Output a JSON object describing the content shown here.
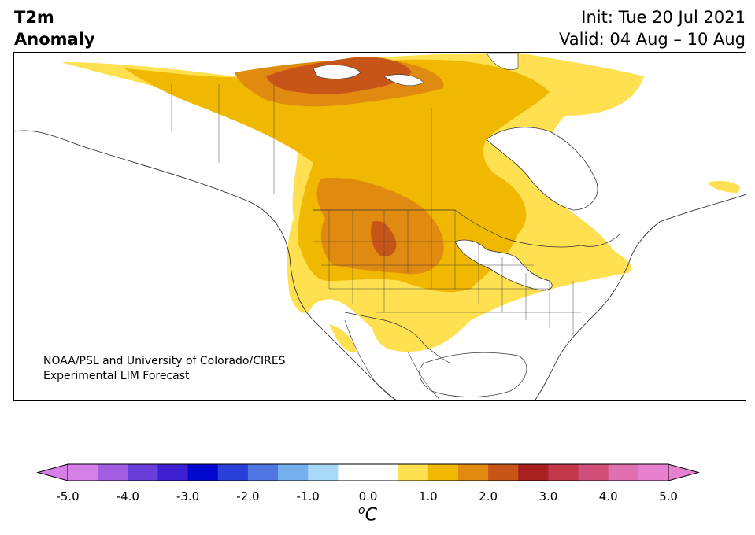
{
  "header": {
    "title_line1": "T2m",
    "title_line2": "Anomaly",
    "init": "Init: Tue 20 Jul 2021",
    "valid": "Valid: 04 Aug – 10 Aug"
  },
  "credit": {
    "line1": "NOAA/PSL and University of Colorado/CIRES",
    "line2": "Experimental LIM Forecast"
  },
  "colorbar": {
    "unit_main": "C",
    "unit_sup": "o",
    "ticks": [
      "-5.0",
      "-4.0",
      "-3.0",
      "-2.0",
      "-1.0",
      "0.0",
      "1.0",
      "2.0",
      "3.0",
      "4.0",
      "5.0"
    ],
    "colors": [
      "#d77fe8",
      "#a15ee0",
      "#6a3ed8",
      "#3e1fd0",
      "#0008d0",
      "#2a3ed8",
      "#4f76e0",
      "#74b0ee",
      "#a8d8f8",
      "#ffffff",
      "#ffffff",
      "#ffe050",
      "#f0b800",
      "#e08a10",
      "#c85518",
      "#a82020",
      "#c0384a",
      "#d0507a",
      "#e070b0",
      "#e880d0"
    ]
  },
  "map_colors": {
    "level1": "#ffe050",
    "level2": "#f0b800",
    "level3": "#e08a10",
    "level4": "#c85518"
  }
}
